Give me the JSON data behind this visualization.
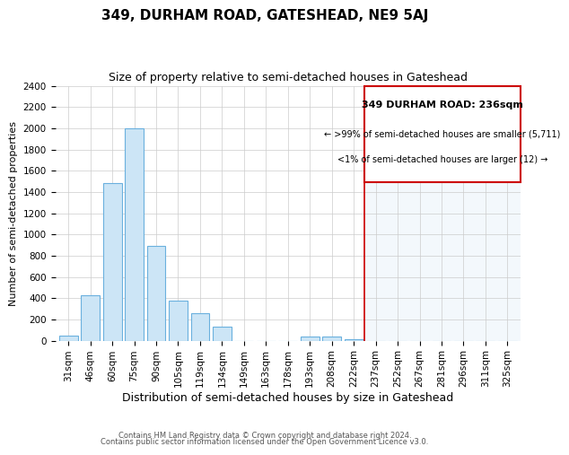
{
  "title": "349, DURHAM ROAD, GATESHEAD, NE9 5AJ",
  "subtitle": "Size of property relative to semi-detached houses in Gateshead",
  "xlabel": "Distribution of semi-detached houses by size in Gateshead",
  "ylabel": "Number of semi-detached properties",
  "footer_line1": "Contains HM Land Registry data © Crown copyright and database right 2024.",
  "footer_line2": "Contains public sector information licensed under the Open Government Licence v3.0.",
  "categories": [
    "31sqm",
    "46sqm",
    "60sqm",
    "75sqm",
    "90sqm",
    "105sqm",
    "119sqm",
    "134sqm",
    "149sqm",
    "163sqm",
    "178sqm",
    "193sqm",
    "208sqm",
    "222sqm",
    "237sqm",
    "252sqm",
    "267sqm",
    "281sqm",
    "296sqm",
    "311sqm",
    "325sqm"
  ],
  "values": [
    50,
    430,
    1480,
    2000,
    890,
    380,
    260,
    130,
    0,
    0,
    0,
    35,
    35,
    15,
    0,
    0,
    0,
    0,
    0,
    0,
    0
  ],
  "bar_facecolor": "#cce5f6",
  "bar_edgecolor": "#6ab0de",
  "bar_facecolor_right": "#ddeef8",
  "bar_edgecolor_right": "#aacce8",
  "highlight_line_color": "#cc0000",
  "highlight_bar_index": 14,
  "ylim_max": 2400,
  "ytick_step": 200,
  "legend_title": "349 DURHAM ROAD: 236sqm",
  "legend_line1": "← >99% of semi-detached houses are smaller (5,711)",
  "legend_line2": "<1% of semi-detached houses are larger (12) →",
  "legend_box_facecolor": "#ffffff",
  "legend_box_edgecolor": "#cc0000",
  "title_fontsize": 11,
  "subtitle_fontsize": 9,
  "xlabel_fontsize": 9,
  "ylabel_fontsize": 8,
  "tick_fontsize": 7.5,
  "footer_fontsize": 6
}
